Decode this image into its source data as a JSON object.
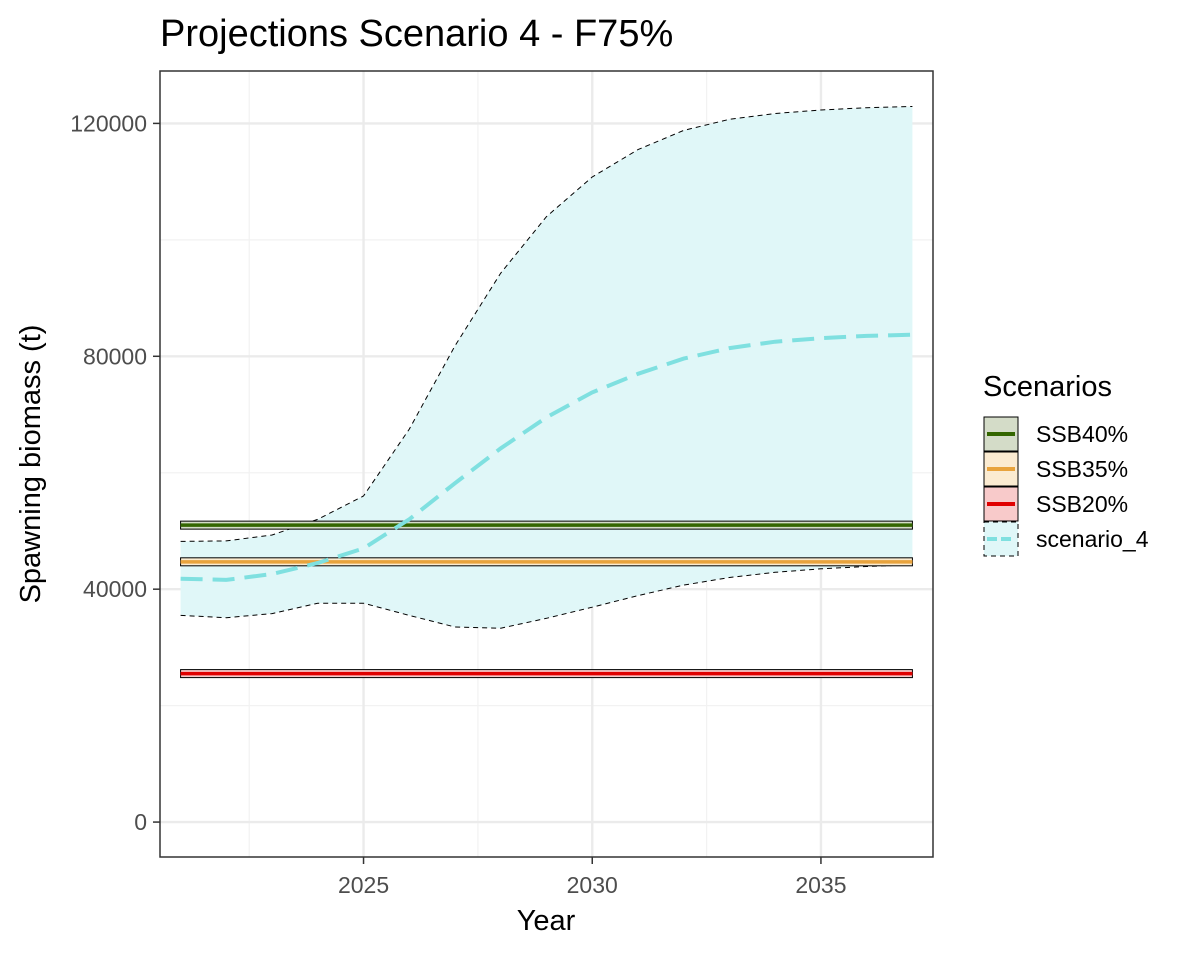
{
  "chart_data": {
    "type": "line",
    "title": "Projections Scenario 4 - F75%",
    "xlabel": "Year",
    "ylabel": "Spawning biomass (t)",
    "xlim": [
      2020.55,
      2037.45
    ],
    "ylim": [
      -6000,
      129000
    ],
    "x_ticks": [
      2025,
      2030,
      2035
    ],
    "x_tick_labels": [
      "2025",
      "2030",
      "2035"
    ],
    "y_ticks": [
      0,
      40000,
      80000,
      120000
    ],
    "y_tick_labels": [
      "0",
      "40000",
      "80000",
      "120000"
    ],
    "grid": true,
    "legend_title": "Scenarios",
    "legend_position": "right",
    "reference_lines": [
      {
        "name": "SSB40%",
        "value": 51000,
        "x_range": [
          2021,
          2037
        ],
        "color": "#336600",
        "fill": "#d4dcc8"
      },
      {
        "name": "SSB35%",
        "value": 44700,
        "x_range": [
          2021,
          2037
        ],
        "color": "#e8a33d",
        "fill": "#fbebd1"
      },
      {
        "name": "SSB20%",
        "value": 25500,
        "x_range": [
          2021,
          2037
        ],
        "color": "#e00000",
        "fill": "#f8caca"
      }
    ],
    "series": [
      {
        "name": "scenario_4",
        "color": "#7fe0e0",
        "fill": "#e0f7f8",
        "x": [
          2021,
          2022,
          2023,
          2024,
          2025,
          2026,
          2027,
          2028,
          2029,
          2030,
          2031,
          2032,
          2033,
          2034,
          2035,
          2036,
          2037
        ],
        "y": [
          41800,
          41600,
          42600,
          44500,
          47000,
          52000,
          58200,
          64200,
          69500,
          73800,
          77000,
          79600,
          81400,
          82500,
          83100,
          83500,
          83700
        ],
        "lower": [
          35500,
          35100,
          35800,
          37600,
          37600,
          35500,
          33500,
          33300,
          35000,
          36900,
          38900,
          40700,
          42000,
          42900,
          43500,
          43900,
          44200
        ],
        "upper": [
          48200,
          48300,
          49300,
          52000,
          56000,
          67500,
          81800,
          94300,
          104000,
          110800,
          115500,
          118800,
          120700,
          121700,
          122300,
          122700,
          122900
        ]
      }
    ]
  }
}
